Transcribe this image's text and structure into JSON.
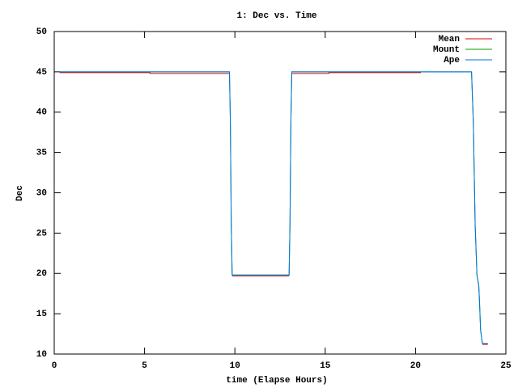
{
  "chart_data": {
    "type": "line",
    "title": "1: Dec vs. Time",
    "x_label": "time (Elapse Hours)",
    "y_label": "Dec",
    "xlim": [
      0,
      25
    ],
    "xticks": [
      0,
      5,
      10,
      15,
      20,
      25
    ],
    "ylim": [
      10,
      50
    ],
    "yticks": [
      10,
      15,
      20,
      25,
      30,
      35,
      40,
      45,
      50
    ],
    "legend": "upper right",
    "series": [
      {
        "name": "Mean",
        "color": "#e00000",
        "x": [
          0.3,
          5.3,
          5.3,
          9.7,
          9.8,
          9.85,
          13.0,
          13.1,
          13.15,
          15.2,
          15.2,
          20.3,
          21,
          23.7,
          24.0
        ],
        "values": [
          44.9,
          44.9,
          44.8,
          44.8,
          null,
          19.7,
          19.7,
          null,
          44.8,
          44.8,
          44.9,
          44.9,
          null,
          11.2,
          11.2
        ]
      },
      {
        "name": "Mount",
        "color": "#00a000",
        "x": [
          0.3,
          9.7,
          9.75,
          9.8,
          9.85,
          13.0,
          13.05,
          13.1,
          13.15,
          23.1,
          23.2,
          23.3,
          23.4,
          23.5,
          23.55,
          23.6,
          23.7,
          24.0
        ],
        "values": [
          45,
          45,
          38.7,
          26,
          19.8,
          19.8,
          26,
          38.7,
          45,
          45,
          38.7,
          26,
          19.8,
          18.5,
          16,
          13,
          11.3,
          11.3
        ]
      },
      {
        "name": "Ape",
        "color": "#0070e0",
        "x": [
          0.3,
          9.7,
          9.75,
          9.8,
          9.85,
          13.0,
          13.05,
          13.1,
          13.15,
          23.1,
          23.2,
          23.3,
          23.4,
          23.5,
          23.55,
          23.6,
          23.7,
          24.0
        ],
        "values": [
          45,
          45,
          38.7,
          26,
          19.8,
          19.8,
          26,
          38.7,
          45,
          45,
          38.7,
          26,
          19.8,
          18.5,
          16,
          13,
          11.3,
          11.3
        ]
      }
    ]
  }
}
